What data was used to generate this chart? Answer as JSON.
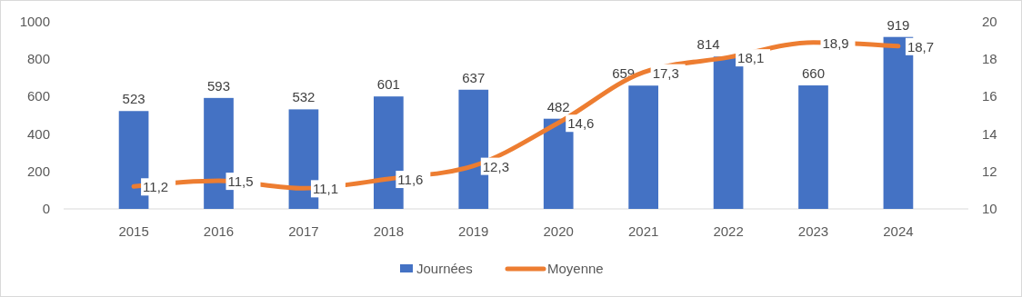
{
  "chart_data": {
    "type": "bar",
    "categories": [
      "2015",
      "2016",
      "2017",
      "2018",
      "2019",
      "2020",
      "2021",
      "2022",
      "2023",
      "2024"
    ],
    "series": [
      {
        "name": "Journées",
        "type": "bar",
        "color": "#4472c4",
        "values": [
          523,
          593,
          532,
          601,
          637,
          482,
          659,
          814,
          660,
          919
        ],
        "value_labels": [
          "523",
          "593",
          "532",
          "601",
          "637",
          "482",
          "659",
          "814",
          "660",
          "919"
        ]
      },
      {
        "name": "Moyenne",
        "type": "line",
        "axis": "y2",
        "color": "#ed7d31",
        "values": [
          11.2,
          11.5,
          11.1,
          11.6,
          12.3,
          14.6,
          17.3,
          18.1,
          18.9,
          18.7
        ],
        "value_labels": [
          "11,2",
          "11,5",
          "11,1",
          "11,6",
          "12,3",
          "14,6",
          "17,3",
          "18,1",
          "18,9",
          "18,7"
        ]
      }
    ],
    "ylim": [
      0,
      1000
    ],
    "yticks": [
      0,
      200,
      400,
      600,
      800,
      1000
    ],
    "y2lim": [
      10,
      20
    ],
    "y2ticks": [
      10,
      12,
      14,
      16,
      18,
      20
    ],
    "legend": "bottom",
    "grid": false,
    "marker": "none",
    "line_style": "solid"
  }
}
